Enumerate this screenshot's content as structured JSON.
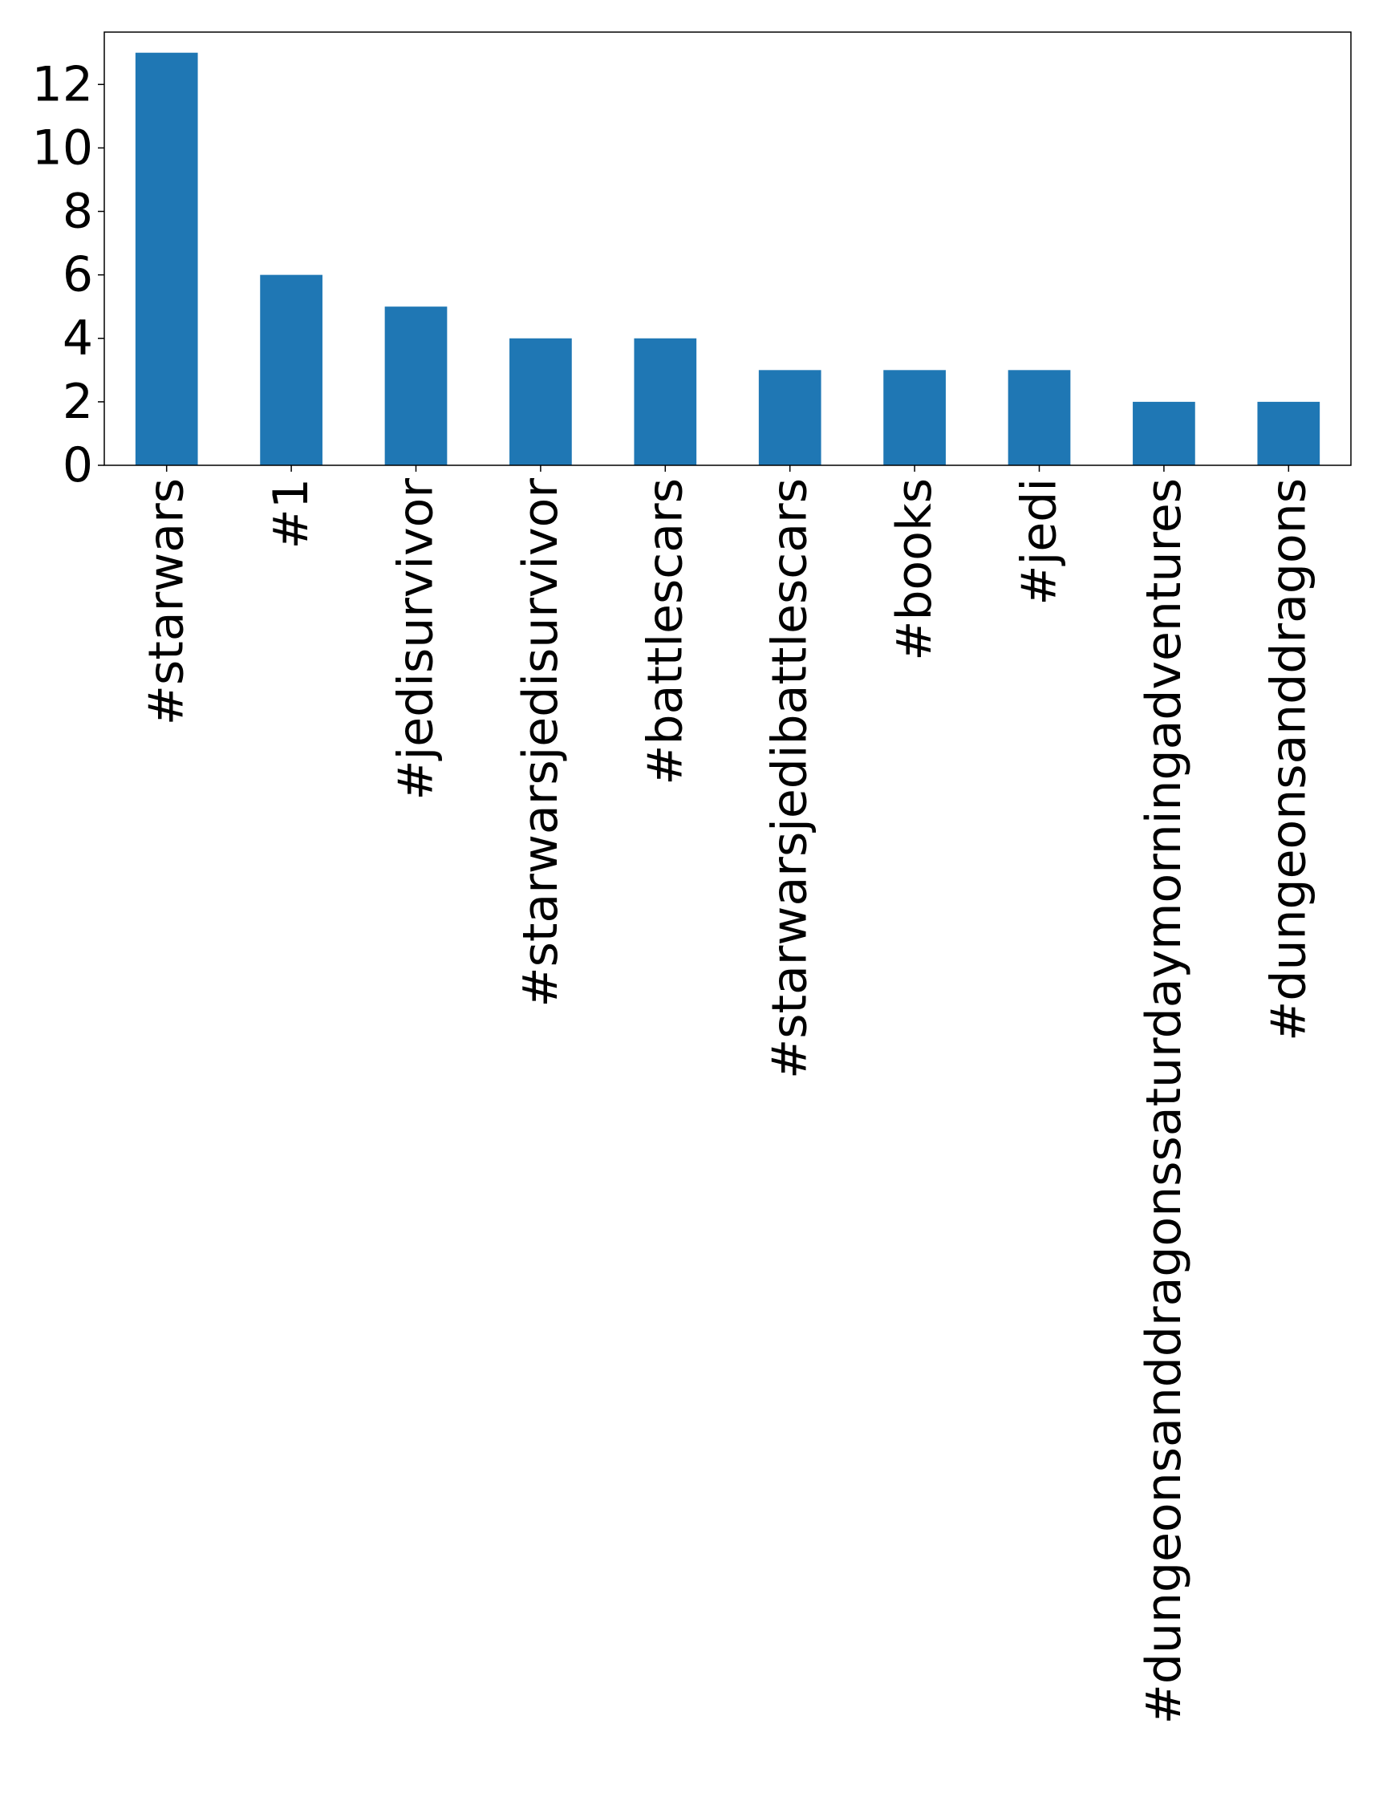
{
  "chart_data": {
    "type": "bar",
    "title": "",
    "xlabel": "",
    "ylabel": "",
    "categories": [
      "#starwars",
      "#1",
      "#jedisurvivor",
      "#starwarsjedisurvivor",
      "#battlescars",
      "#starwarsjedibattlescars",
      "#books",
      "#jedi",
      "#dungeonsanddragonssaturdaymorningadventures",
      "#dungeonsanddragons"
    ],
    "values": [
      13,
      6,
      5,
      4,
      4,
      3,
      3,
      3,
      2,
      2
    ],
    "ylim": [
      0,
      13.65
    ],
    "yticks": [
      0,
      2,
      4,
      6,
      8,
      10,
      12
    ],
    "ytick_labels": [
      "0",
      "2",
      "4",
      "6",
      "8",
      "10",
      "12"
    ],
    "grid": false,
    "legend": "none",
    "bar_color": "#1f77b4"
  }
}
